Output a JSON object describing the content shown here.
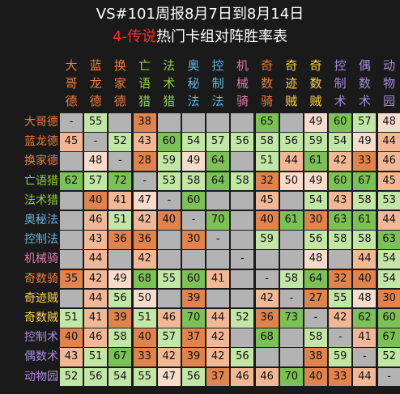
{
  "header": {
    "title": "VS#101周报8月7日到8月14日",
    "subtitle_highlight": "4-传说",
    "subtitle_rest": "热门卡组对阵胜率表"
  },
  "colors": {
    "very_low": "#e0834c",
    "low": "#f2b895",
    "mid": "#f8dccb",
    "high": "#c2e6a6",
    "very_high": "#7cc155",
    "empty": "#b3b3b3"
  },
  "chart_data": {
    "type": "heatmap",
    "decks": [
      {
        "name": "大哥德",
        "color": "#f07b3b"
      },
      {
        "name": "蓝龙德",
        "color": "#f07b3b"
      },
      {
        "name": "换家德",
        "color": "#f07b3b"
      },
      {
        "name": "亡语猎",
        "color": "#8fd13a"
      },
      {
        "name": "法术猎",
        "color": "#8fd13a"
      },
      {
        "name": "奥秘法",
        "color": "#5fb7e6"
      },
      {
        "name": "控制法",
        "color": "#5fb7e6"
      },
      {
        "name": "机械骑",
        "color": "#e07ab0"
      },
      {
        "name": "奇数骑",
        "color": "#f07b3b"
      },
      {
        "name": "奇迹贼",
        "color": "#ffd54a"
      },
      {
        "name": "奇数贼",
        "color": "#ffd54a"
      },
      {
        "name": "控制术",
        "color": "#a98be0"
      },
      {
        "name": "偶数术",
        "color": "#a98be0"
      },
      {
        "name": "动物园",
        "color": "#a98be0"
      }
    ],
    "matrix": [
      [
        "-",
        55,
        null,
        38,
        null,
        null,
        null,
        null,
        65,
        null,
        49,
        60,
        57,
        48
      ],
      [
        45,
        "-",
        52,
        43,
        60,
        54,
        57,
        56,
        58,
        56,
        59,
        54,
        49,
        44
      ],
      [
        null,
        48,
        "-",
        28,
        59,
        49,
        64,
        null,
        51,
        44,
        61,
        42,
        33,
        46
      ],
      [
        62,
        57,
        72,
        "-",
        53,
        58,
        64,
        58,
        32,
        50,
        49,
        60,
        67,
        45
      ],
      [
        null,
        40,
        41,
        47,
        "-",
        60,
        null,
        null,
        45,
        null,
        54,
        43,
        58,
        53
      ],
      [
        null,
        46,
        51,
        42,
        40,
        "-",
        70,
        null,
        40,
        61,
        30,
        63,
        61,
        44
      ],
      [
        null,
        43,
        36,
        36,
        null,
        30,
        "-",
        null,
        59,
        null,
        56,
        58,
        58,
        63
      ],
      [
        null,
        44,
        null,
        42,
        null,
        null,
        null,
        "-",
        null,
        null,
        48,
        null,
        44,
        54
      ],
      [
        35,
        42,
        49,
        68,
        55,
        60,
        41,
        null,
        "-",
        58,
        64,
        32,
        40,
        54
      ],
      [
        null,
        44,
        56,
        50,
        null,
        39,
        null,
        null,
        42,
        "-",
        27,
        55,
        48,
        30
      ],
      [
        51,
        41,
        39,
        51,
        46,
        70,
        44,
        52,
        36,
        73,
        "-",
        42,
        62,
        60
      ],
      [
        40,
        46,
        58,
        40,
        57,
        37,
        42,
        null,
        68,
        null,
        58,
        "-",
        41,
        67
      ],
      [
        43,
        51,
        67,
        33,
        42,
        39,
        42,
        56,
        null,
        null,
        38,
        59,
        "-",
        52
      ],
      [
        52,
        56,
        54,
        55,
        47,
        56,
        37,
        46,
        46,
        70,
        40,
        33,
        44,
        "-"
      ]
    ]
  }
}
